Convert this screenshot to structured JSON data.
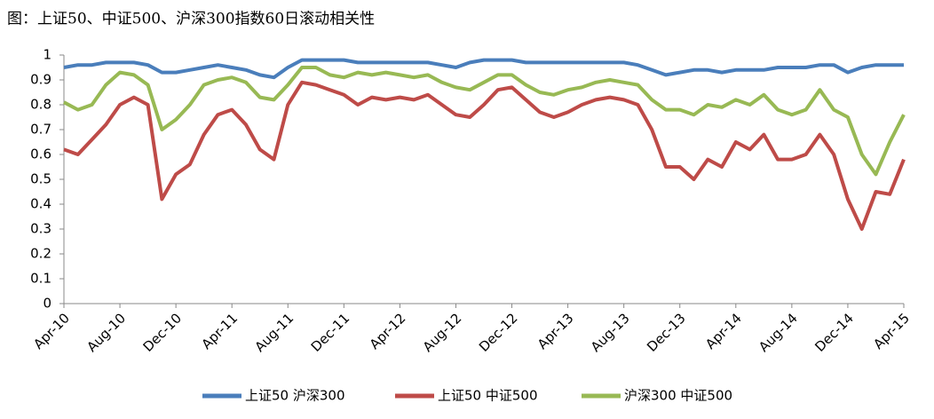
{
  "chart_data": {
    "type": "line",
    "title": "图：上证50、中证500、沪深300指数60日滚动相关性",
    "categories": [
      "Apr-10",
      null,
      null,
      null,
      "Aug-10",
      null,
      null,
      null,
      "Dec-10",
      null,
      null,
      null,
      "Apr-11",
      null,
      null,
      null,
      "Aug-11",
      null,
      null,
      null,
      "Dec-11",
      null,
      null,
      null,
      "Apr-12",
      null,
      null,
      null,
      "Aug-12",
      null,
      null,
      null,
      "Dec-12",
      null,
      null,
      null,
      "Apr-13",
      null,
      null,
      null,
      "Aug-13",
      null,
      null,
      null,
      "Dec-13",
      null,
      null,
      null,
      "Apr-14",
      null,
      null,
      null,
      "Aug-14",
      null,
      null,
      null,
      "Dec-14",
      null,
      null,
      null,
      "Apr-15"
    ],
    "series": [
      {
        "name": "上证50 沪深300",
        "color": "#4a7ebb",
        "values": [
          0.95,
          0.96,
          0.96,
          0.97,
          0.97,
          0.97,
          0.96,
          0.93,
          0.93,
          0.94,
          0.95,
          0.96,
          0.95,
          0.94,
          0.92,
          0.91,
          0.95,
          0.98,
          0.98,
          0.98,
          0.98,
          0.97,
          0.97,
          0.97,
          0.97,
          0.97,
          0.97,
          0.96,
          0.95,
          0.97,
          0.98,
          0.98,
          0.98,
          0.97,
          0.97,
          0.97,
          0.97,
          0.97,
          0.97,
          0.97,
          0.97,
          0.96,
          0.94,
          0.92,
          0.93,
          0.94,
          0.94,
          0.93,
          0.94,
          0.94,
          0.94,
          0.95,
          0.95,
          0.95,
          0.96,
          0.96,
          0.93,
          0.95,
          0.96,
          0.96,
          0.96
        ]
      },
      {
        "name": "上证50 中证500",
        "color": "#be4b48",
        "values": [
          0.62,
          0.6,
          0.66,
          0.72,
          0.8,
          0.83,
          0.8,
          0.42,
          0.52,
          0.56,
          0.68,
          0.76,
          0.78,
          0.72,
          0.62,
          0.58,
          0.8,
          0.89,
          0.88,
          0.86,
          0.84,
          0.8,
          0.83,
          0.82,
          0.83,
          0.82,
          0.84,
          0.8,
          0.76,
          0.75,
          0.8,
          0.86,
          0.87,
          0.82,
          0.77,
          0.75,
          0.77,
          0.8,
          0.82,
          0.83,
          0.82,
          0.8,
          0.7,
          0.55,
          0.55,
          0.5,
          0.58,
          0.55,
          0.65,
          0.62,
          0.68,
          0.58,
          0.58,
          0.6,
          0.68,
          0.6,
          0.42,
          0.3,
          0.45,
          0.44,
          0.58
        ]
      },
      {
        "name": "沪深300 中证500",
        "color": "#98b954",
        "values": [
          0.81,
          0.78,
          0.8,
          0.88,
          0.93,
          0.92,
          0.88,
          0.7,
          0.74,
          0.8,
          0.88,
          0.9,
          0.91,
          0.89,
          0.83,
          0.82,
          0.88,
          0.95,
          0.95,
          0.92,
          0.91,
          0.93,
          0.92,
          0.93,
          0.92,
          0.91,
          0.92,
          0.89,
          0.87,
          0.86,
          0.89,
          0.92,
          0.92,
          0.88,
          0.85,
          0.84,
          0.86,
          0.87,
          0.89,
          0.9,
          0.89,
          0.88,
          0.82,
          0.78,
          0.78,
          0.76,
          0.8,
          0.79,
          0.82,
          0.8,
          0.84,
          0.78,
          0.76,
          0.78,
          0.86,
          0.78,
          0.75,
          0.6,
          0.52,
          0.65,
          0.76
        ]
      }
    ],
    "ylim": [
      0,
      1
    ],
    "yticks": [
      0,
      0.1,
      0.2,
      0.3,
      0.4,
      0.5,
      0.6,
      0.7,
      0.8,
      0.9,
      1
    ],
    "grid": false,
    "legend": "bottom"
  }
}
